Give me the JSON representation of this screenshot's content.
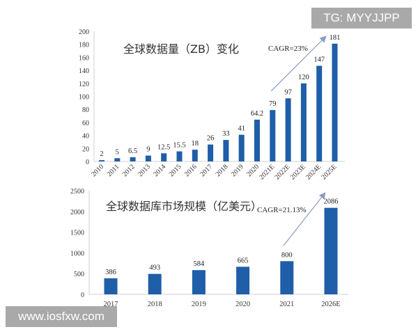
{
  "watermarks": {
    "top_right": "TG: MYYJJPP",
    "bottom_left": "www.iosfxw.com"
  },
  "chart_data": [
    {
      "type": "bar",
      "title": "全球数据量（ZB）变化",
      "annotation": "CAGR=23%",
      "categories": [
        "2010",
        "2011",
        "2012",
        "2013",
        "2014",
        "2015",
        "2016",
        "2017",
        "2018",
        "2019",
        "2020",
        "2021E",
        "2022E",
        "2023E",
        "2024E",
        "2025E"
      ],
      "values": [
        2,
        5,
        6.5,
        9,
        12.5,
        15.5,
        18,
        26,
        33,
        41,
        64.2,
        79,
        97,
        120,
        147,
        181
      ],
      "value_labels": [
        "2",
        "5",
        "6.5",
        "9",
        "12.5",
        "15.5",
        "18",
        "26",
        "33",
        "41",
        "64.2",
        "79",
        "97",
        "120",
        "147",
        "181"
      ],
      "ylim": [
        0,
        200
      ],
      "yticks": [
        0,
        20,
        40,
        60,
        80,
        100,
        120,
        140,
        160,
        180,
        200
      ],
      "grid": false,
      "color": "#1f5ea8"
    },
    {
      "type": "bar",
      "title": "全球数据库市场规模（亿美元）",
      "annotation": "CAGR=21.13%",
      "categories": [
        "2017",
        "2018",
        "2019",
        "2020",
        "2021",
        "2026E"
      ],
      "values": [
        386,
        493,
        584,
        665,
        800,
        2086
      ],
      "value_labels": [
        "386",
        "493",
        "584",
        "665",
        "800",
        "2086"
      ],
      "ylim": [
        0,
        2500
      ],
      "yticks": [
        0,
        500,
        1000,
        1500,
        2000,
        2500
      ],
      "grid": false,
      "color": "#1f5ea8"
    }
  ]
}
